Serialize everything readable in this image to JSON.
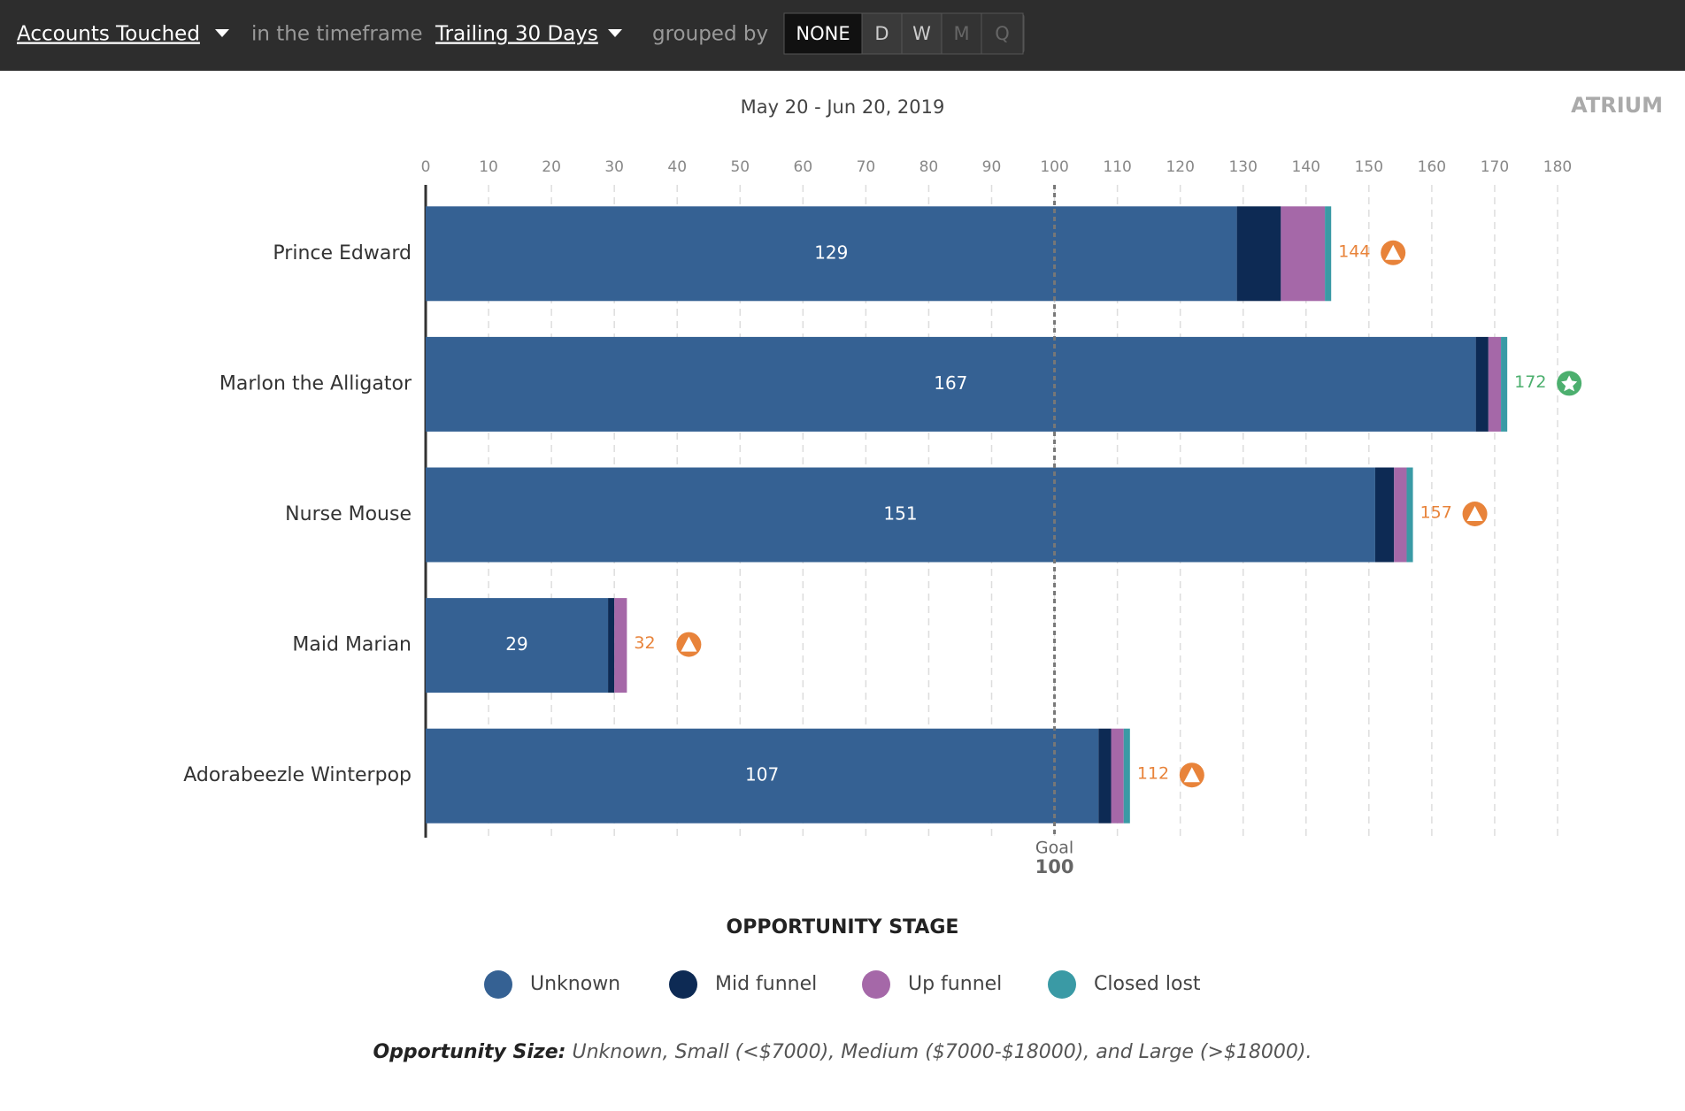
{
  "header": {
    "metric": "Accounts Touched",
    "timeframe_label": "in the timeframe",
    "timeframe": "Trailing 30 Days",
    "grouped_label": "grouped by",
    "buttons": [
      "NONE",
      "D",
      "W",
      "M",
      "Q"
    ]
  },
  "logo": "ATRIUM",
  "chart_data": {
    "type": "stacked-bar-horizontal",
    "subtitle": "May 20 - Jun 20, 2019",
    "categories": [
      "Prince Edward",
      "Marlon the Alligator",
      "Nurse Mouse",
      "Maid Marian",
      "Adorabeezle Winterpop"
    ],
    "series": [
      {
        "name": "Unknown",
        "color": "#356193",
        "values": [
          129,
          167,
          151,
          29,
          107
        ]
      },
      {
        "name": "Mid funnel",
        "color": "#0d2a54",
        "values": [
          7,
          2,
          3,
          1,
          2
        ]
      },
      {
        "name": "Up funnel",
        "color": "#a568a8",
        "values": [
          7,
          2,
          2,
          2,
          2
        ]
      },
      {
        "name": "Closed lost",
        "color": "#3a9aa5",
        "values": [
          1,
          1,
          1,
          0,
          1
        ]
      }
    ],
    "totals": [
      144,
      172,
      157,
      32,
      112
    ],
    "status": [
      "warning",
      "star",
      "warning",
      "warning",
      "warning"
    ],
    "goal": {
      "label": "Goal",
      "value": 100
    },
    "xlim": [
      0,
      180
    ],
    "xticks": [
      0,
      10,
      20,
      30,
      40,
      50,
      60,
      70,
      80,
      90,
      100,
      110,
      120,
      130,
      140,
      150,
      160,
      170,
      180
    ],
    "grid": true,
    "legend_title": "OPPORTUNITY STAGE",
    "footnote": {
      "label": "Opportunity Size:",
      "text": "Unknown, Small (<$7000), Medium ($7000-$18000), and Large (>$18000)."
    }
  }
}
